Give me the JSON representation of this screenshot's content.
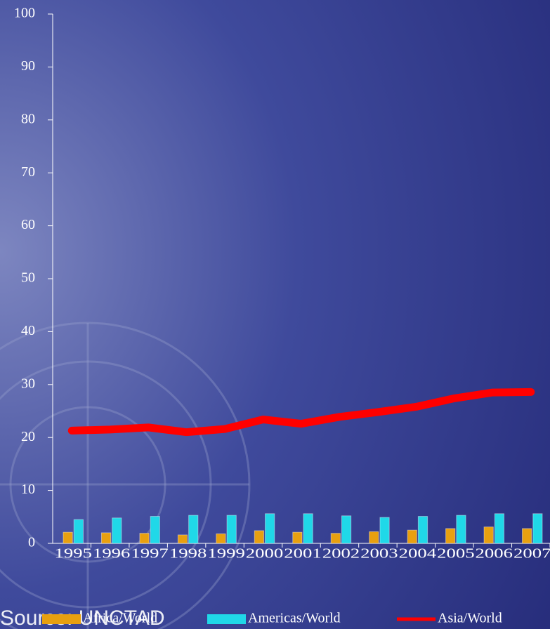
{
  "chart_data": {
    "type": "bar_line",
    "categories": [
      "1995",
      "1996",
      "1997",
      "1998",
      "1999",
      "2000",
      "2001",
      "2002",
      "2003",
      "2004",
      "2005",
      "2006",
      "2007"
    ],
    "series": [
      {
        "name": "Africa/World",
        "type": "bar",
        "color": "#e8a010",
        "values": [
          2.1,
          2.0,
          1.9,
          1.6,
          1.8,
          2.4,
          2.1,
          1.9,
          2.2,
          2.5,
          2.8,
          3.1,
          2.8
        ]
      },
      {
        "name": "Americas/World",
        "type": "bar",
        "color": "#20d8e8",
        "values": [
          4.5,
          4.8,
          5.1,
          5.3,
          5.3,
          5.6,
          5.6,
          5.2,
          4.9,
          5.1,
          5.3,
          5.6,
          5.6
        ]
      },
      {
        "name": "Asia/World",
        "type": "line",
        "color": "#ff0000",
        "values": [
          21.3,
          21.5,
          21.9,
          21.0,
          21.6,
          23.4,
          22.6,
          23.9,
          24.8,
          25.8,
          27.4,
          28.5,
          28.6
        ]
      }
    ],
    "ylim": [
      0,
      100
    ],
    "yticks": [
      0,
      10,
      20,
      30,
      40,
      50,
      60,
      70,
      80,
      90,
      100
    ],
    "source": "Source: UNCTAD"
  }
}
